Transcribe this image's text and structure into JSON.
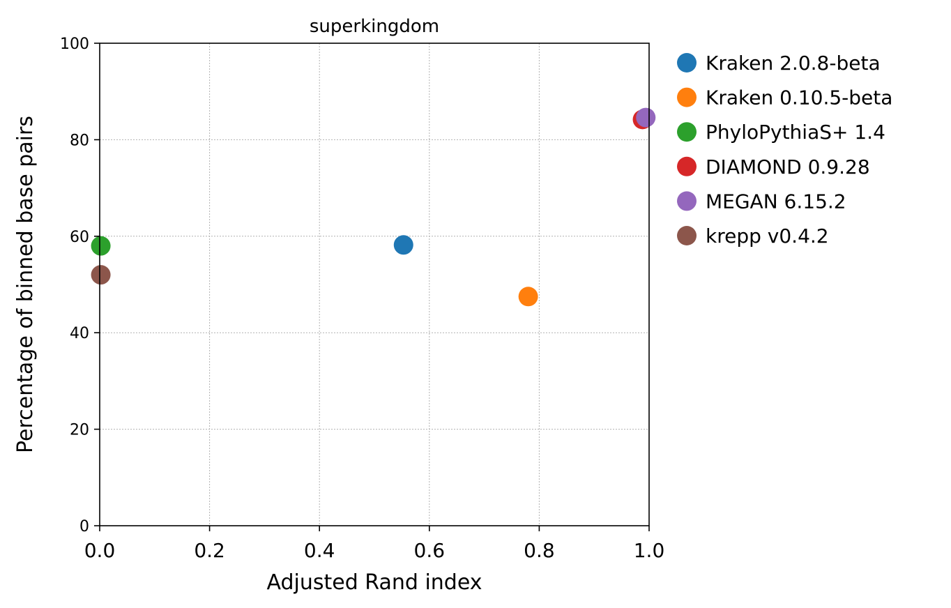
{
  "chart_data": {
    "type": "scatter",
    "title": "superkingdom",
    "xlabel": "Adjusted Rand index",
    "ylabel": "Percentage of binned base pairs",
    "xlim": [
      0.0,
      1.0
    ],
    "ylim": [
      0,
      100
    ],
    "x_ticks": [
      0.0,
      0.2,
      0.4,
      0.6,
      0.8,
      1.0
    ],
    "x_tick_labels": [
      "0.0",
      "0.2",
      "0.4",
      "0.6",
      "0.8",
      "1.0"
    ],
    "y_ticks": [
      0,
      20,
      40,
      60,
      80,
      100
    ],
    "y_tick_labels": [
      "0",
      "20",
      "40",
      "60",
      "80",
      "100"
    ],
    "grid": true,
    "legend_position": "outside-right",
    "series": [
      {
        "name": "Kraken 2.0.8-beta",
        "color": "#1f77b4",
        "x": 0.553,
        "y": 58.2
      },
      {
        "name": "Kraken 0.10.5-beta",
        "color": "#ff7f0e",
        "x": 0.78,
        "y": 47.5
      },
      {
        "name": "PhyloPythiaS+ 1.4",
        "color": "#2ca02c",
        "x": 0.002,
        "y": 58.0
      },
      {
        "name": "DIAMOND 0.9.28",
        "color": "#d62728",
        "x": 0.988,
        "y": 84.2
      },
      {
        "name": "MEGAN 6.15.2",
        "color": "#9467bd",
        "x": 0.994,
        "y": 84.6
      },
      {
        "name": "krepp v0.4.2",
        "color": "#8c564b",
        "x": 0.002,
        "y": 52.0
      }
    ]
  }
}
